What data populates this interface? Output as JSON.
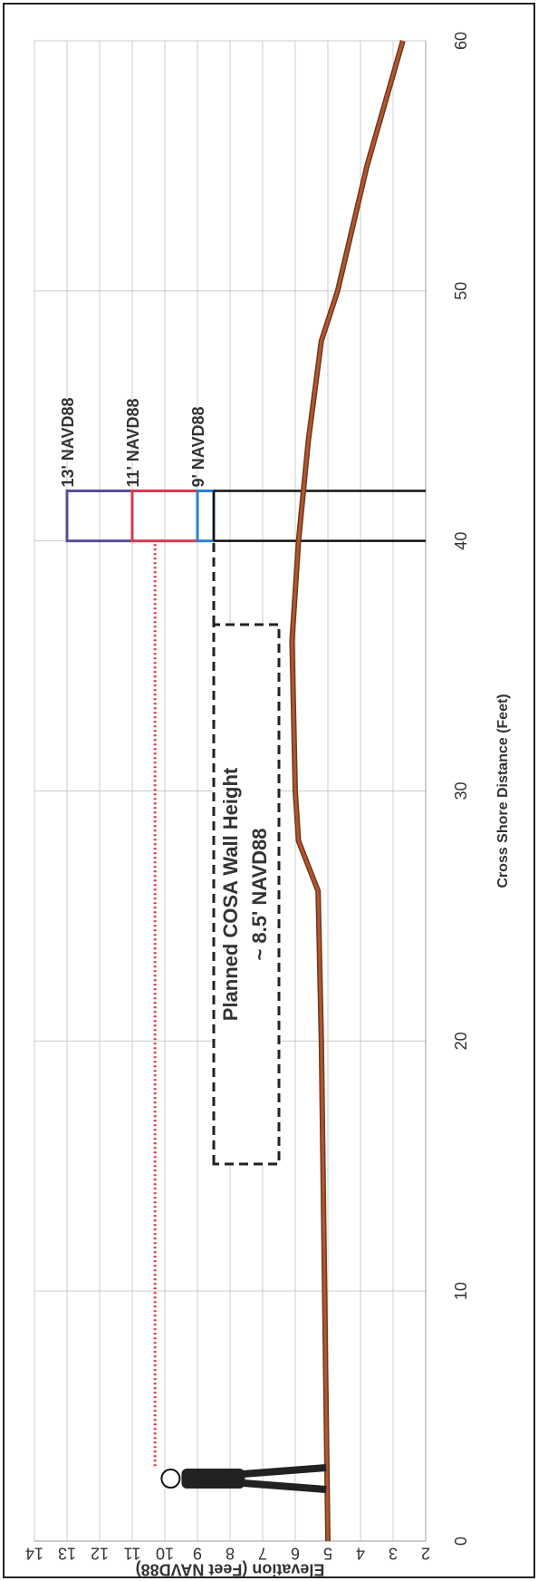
{
  "chart_data": {
    "type": "line",
    "x_label": "Cross Shore Distance (Feet)",
    "y_label": "Elevation (Feet NAVD88)",
    "xlim": [
      0,
      60
    ],
    "xticks": [
      0,
      10,
      20,
      30,
      40,
      50,
      60
    ],
    "ylim": [
      2,
      14
    ],
    "yticks": [
      2,
      3,
      4,
      5,
      6,
      7,
      8,
      9,
      10,
      11,
      12,
      13,
      14
    ],
    "grid": true,
    "x": [
      0,
      10,
      20,
      26,
      28,
      30,
      36,
      40,
      44,
      48,
      50,
      55,
      60
    ],
    "series": [
      {
        "color": "#b5552f",
        "values": [
          5.0,
          5.1,
          5.2,
          5.3,
          5.9,
          6.0,
          6.1,
          5.9,
          5.6,
          5.2,
          4.7,
          3.8,
          2.7
        ]
      }
    ],
    "box_x": [
      40,
      42
    ],
    "levels": [
      {
        "label": "13' NAVD88",
        "value": 13,
        "color": "#5b4b9b"
      },
      {
        "label": "11' NAVD88",
        "value": 11,
        "color": "#d83a50"
      },
      {
        "label": "9' NAVD88",
        "value": 9,
        "color": "#2a7fd4"
      }
    ],
    "wall": {
      "value": 8.5,
      "text": [
        "Planned COSA Wall Height",
        "~ 8.5' NAVD88"
      ]
    },
    "dotted_line": {
      "value": 10.3,
      "x": [
        3,
        40
      ],
      "color": "#e8303a"
    }
  }
}
